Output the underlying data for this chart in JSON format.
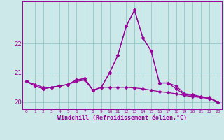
{
  "x": [
    0,
    1,
    2,
    3,
    4,
    5,
    6,
    7,
    8,
    9,
    10,
    11,
    12,
    13,
    14,
    15,
    16,
    17,
    18,
    19,
    20,
    21,
    22,
    23
  ],
  "line1": [
    20.7,
    20.6,
    20.5,
    20.5,
    20.55,
    20.6,
    20.7,
    20.75,
    20.4,
    20.5,
    20.5,
    20.5,
    20.5,
    20.48,
    20.45,
    20.4,
    20.35,
    20.32,
    20.28,
    20.22,
    20.18,
    20.15,
    20.12,
    20.0
  ],
  "line2": [
    20.7,
    20.55,
    20.45,
    20.5,
    20.55,
    20.6,
    20.75,
    20.8,
    20.4,
    20.5,
    21.0,
    21.6,
    22.6,
    23.15,
    22.2,
    21.75,
    20.65,
    20.65,
    20.55,
    20.28,
    20.25,
    20.18,
    20.15,
    20.0
  ],
  "line3": [
    20.7,
    20.55,
    20.45,
    20.5,
    20.55,
    20.6,
    20.75,
    20.8,
    20.4,
    20.5,
    21.0,
    21.6,
    22.6,
    23.15,
    22.2,
    21.75,
    20.65,
    20.65,
    20.45,
    20.25,
    20.22,
    20.16,
    20.12,
    20.0
  ],
  "yticks": [
    20,
    21,
    22
  ],
  "xticks": [
    0,
    1,
    2,
    3,
    4,
    5,
    6,
    7,
    8,
    9,
    10,
    11,
    12,
    13,
    14,
    15,
    16,
    17,
    18,
    19,
    20,
    21,
    22,
    23
  ],
  "ylim": [
    19.75,
    23.45
  ],
  "xlim": [
    -0.5,
    23.5
  ],
  "xlabel": "Windchill (Refroidissement éolien,°C)",
  "line_color": "#990099",
  "bg_color": "#cce8e8",
  "grid_color": "#99cccc",
  "markersize": 2.5,
  "linewidth": 0.9
}
